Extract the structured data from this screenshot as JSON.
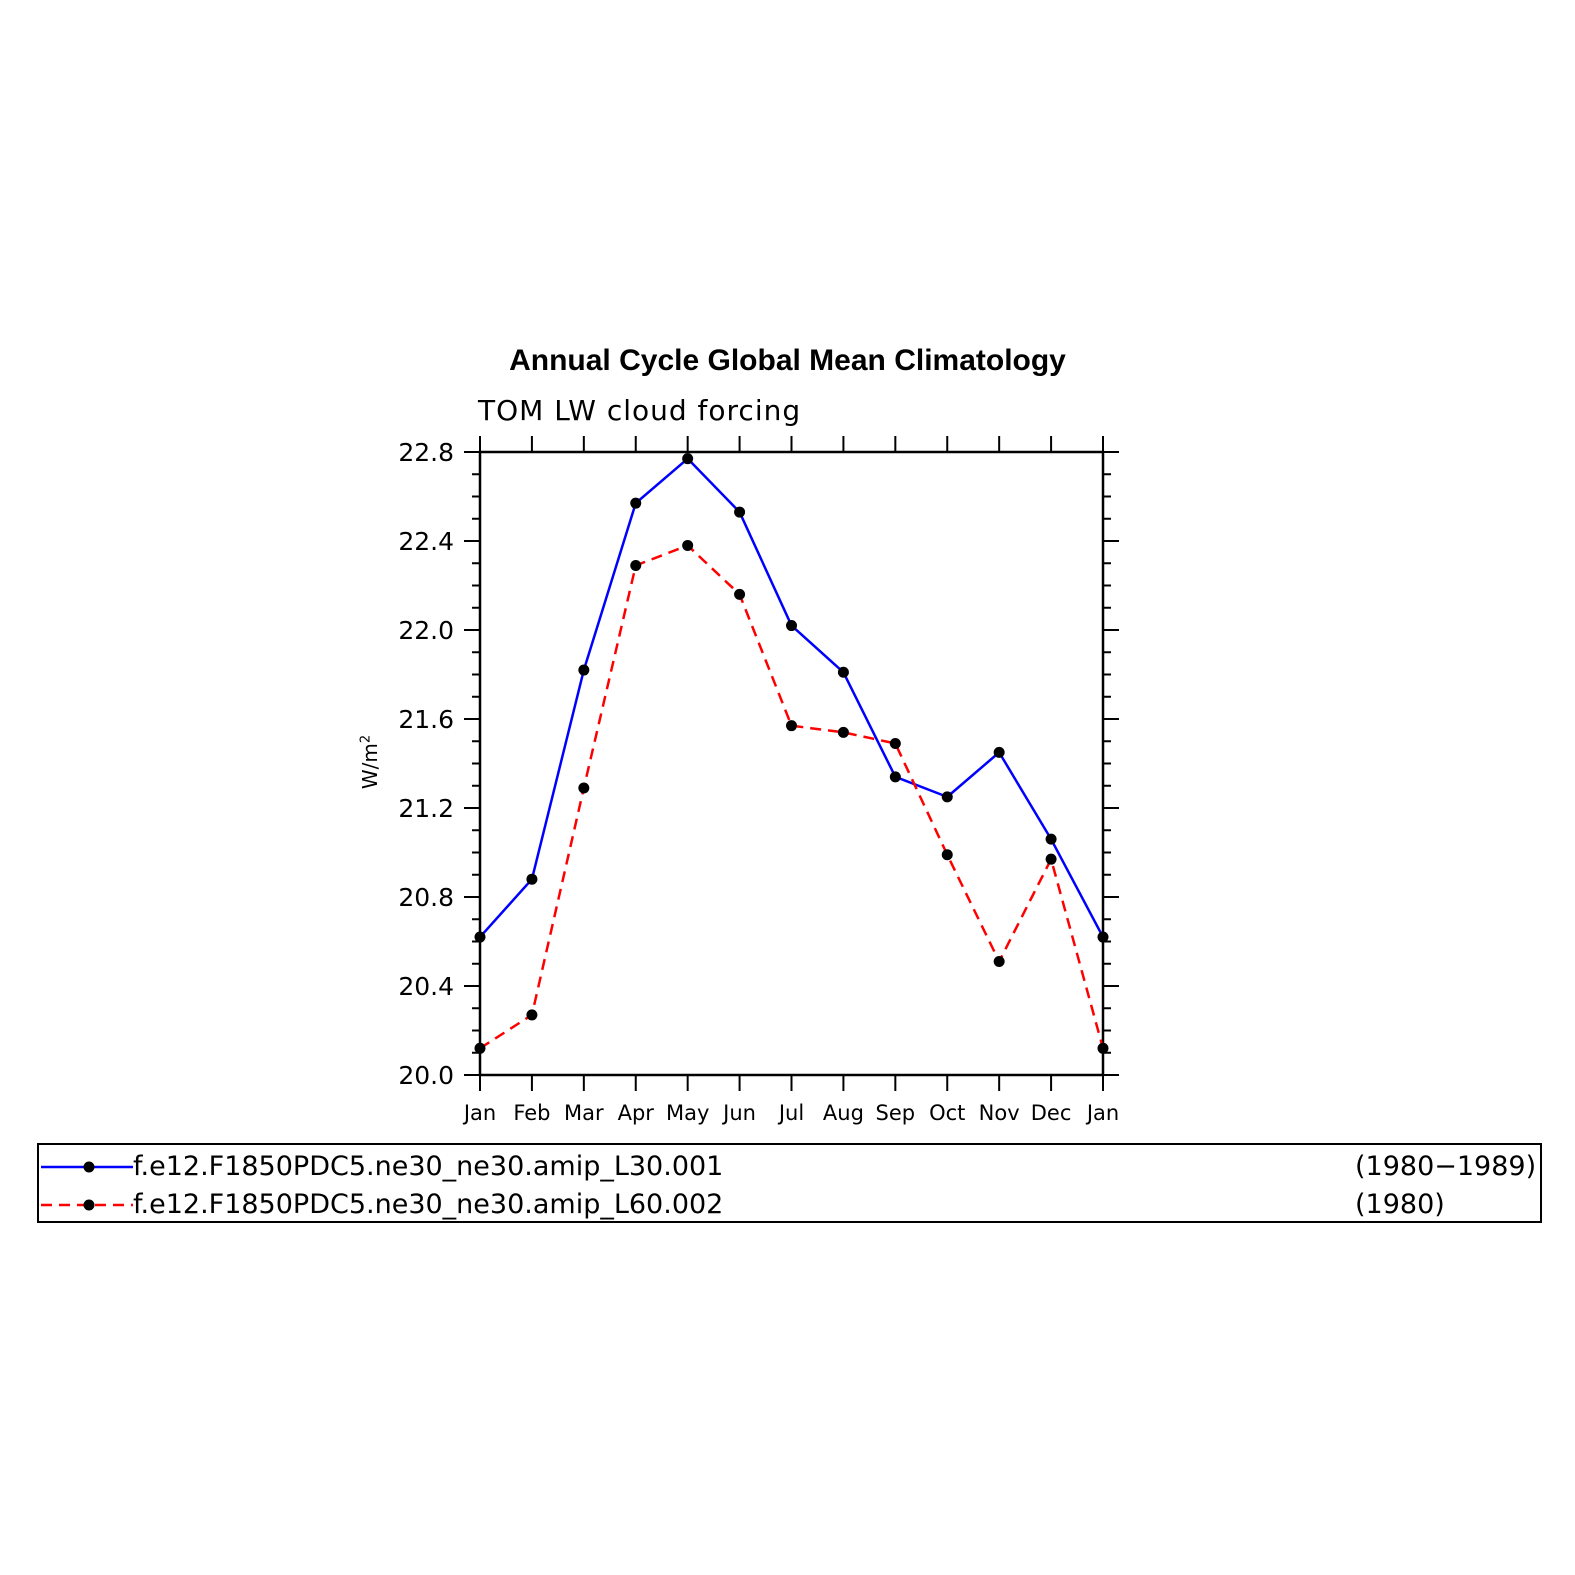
{
  "chart_data": {
    "type": "line",
    "title": "Annual Cycle Global Mean Climatology",
    "subtitle": "TOM LW cloud forcing",
    "ylabel": "W/m",
    "ylabel_superscript": "2",
    "categories": [
      "Jan",
      "Feb",
      "Mar",
      "Apr",
      "May",
      "Jun",
      "Jul",
      "Aug",
      "Sep",
      "Oct",
      "Nov",
      "Dec",
      "Jan"
    ],
    "ylim": [
      20.0,
      22.8
    ],
    "yticks": [
      "20.0",
      "20.4",
      "20.8",
      "21.2",
      "21.6",
      "22.0",
      "22.4",
      "22.8"
    ],
    "grid": false,
    "legend_position": "bottom",
    "series": [
      {
        "name": "f.e12.F1850PDC5.ne30_ne30.amip_L30.001",
        "period": "(1980−1989)",
        "color": "#0000ff",
        "style": "solid",
        "values": [
          20.62,
          20.88,
          21.82,
          22.57,
          22.77,
          22.53,
          22.02,
          21.81,
          21.34,
          21.25,
          21.45,
          21.06,
          20.62
        ]
      },
      {
        "name": "f.e12.F1850PDC5.ne30_ne30.amip_L60.002",
        "period": "(1980)",
        "color": "#ff0000",
        "style": "dashed",
        "values": [
          20.12,
          20.27,
          21.29,
          22.29,
          22.38,
          22.16,
          21.57,
          21.54,
          21.49,
          20.99,
          20.51,
          20.97,
          20.12
        ]
      }
    ]
  }
}
